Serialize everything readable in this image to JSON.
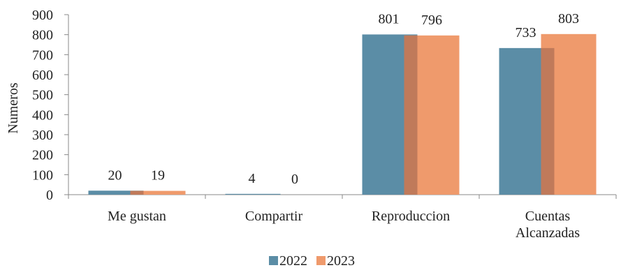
{
  "chart_data": {
    "type": "bar",
    "title": "",
    "xlabel": "",
    "ylabel": "Numeros",
    "ylim": [
      0,
      900
    ],
    "yticks": [
      0,
      100,
      200,
      300,
      400,
      500,
      600,
      700,
      800,
      900
    ],
    "grid": false,
    "legend_position": "bottom",
    "categories": [
      [
        "Me gustan"
      ],
      [
        "Compartir"
      ],
      [
        "Reproduccion"
      ],
      [
        "Cuentas",
        "Alcanzadas"
      ]
    ],
    "series": [
      {
        "name": "2022",
        "color": "#5b8da6",
        "values": [
          20,
          4,
          801,
          733
        ]
      },
      {
        "name": "2023",
        "color": "#ef9a6c",
        "values": [
          19,
          0,
          796,
          803
        ]
      }
    ],
    "overlap_color": "#c07a5a"
  }
}
